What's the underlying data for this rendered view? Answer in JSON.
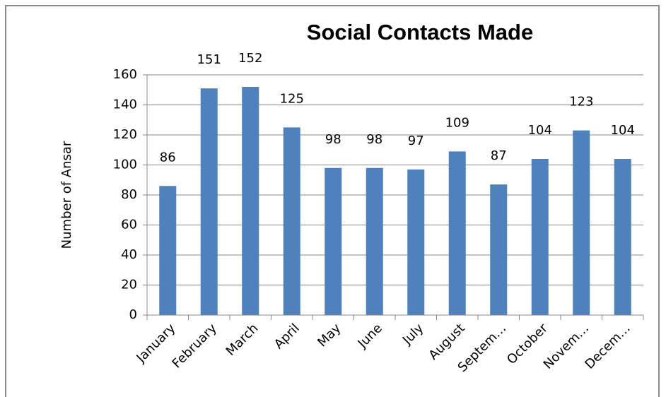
{
  "chart_data": {
    "type": "bar",
    "title": "Social Contacts Made",
    "y_label": "Number of Ansar",
    "categories": [
      "January",
      "February",
      "March",
      "April",
      "May",
      "June",
      "July",
      "August",
      "Septem…",
      "October",
      "Novem…",
      "Decem…"
    ],
    "values": [
      86,
      151,
      152,
      125,
      98,
      98,
      97,
      109,
      87,
      104,
      123,
      104
    ],
    "color": "#4f81bd",
    "ylim": [
      0,
      160
    ],
    "yticks": [
      0,
      20,
      40,
      60,
      80,
      100,
      120,
      140,
      160
    ],
    "grid": true
  }
}
